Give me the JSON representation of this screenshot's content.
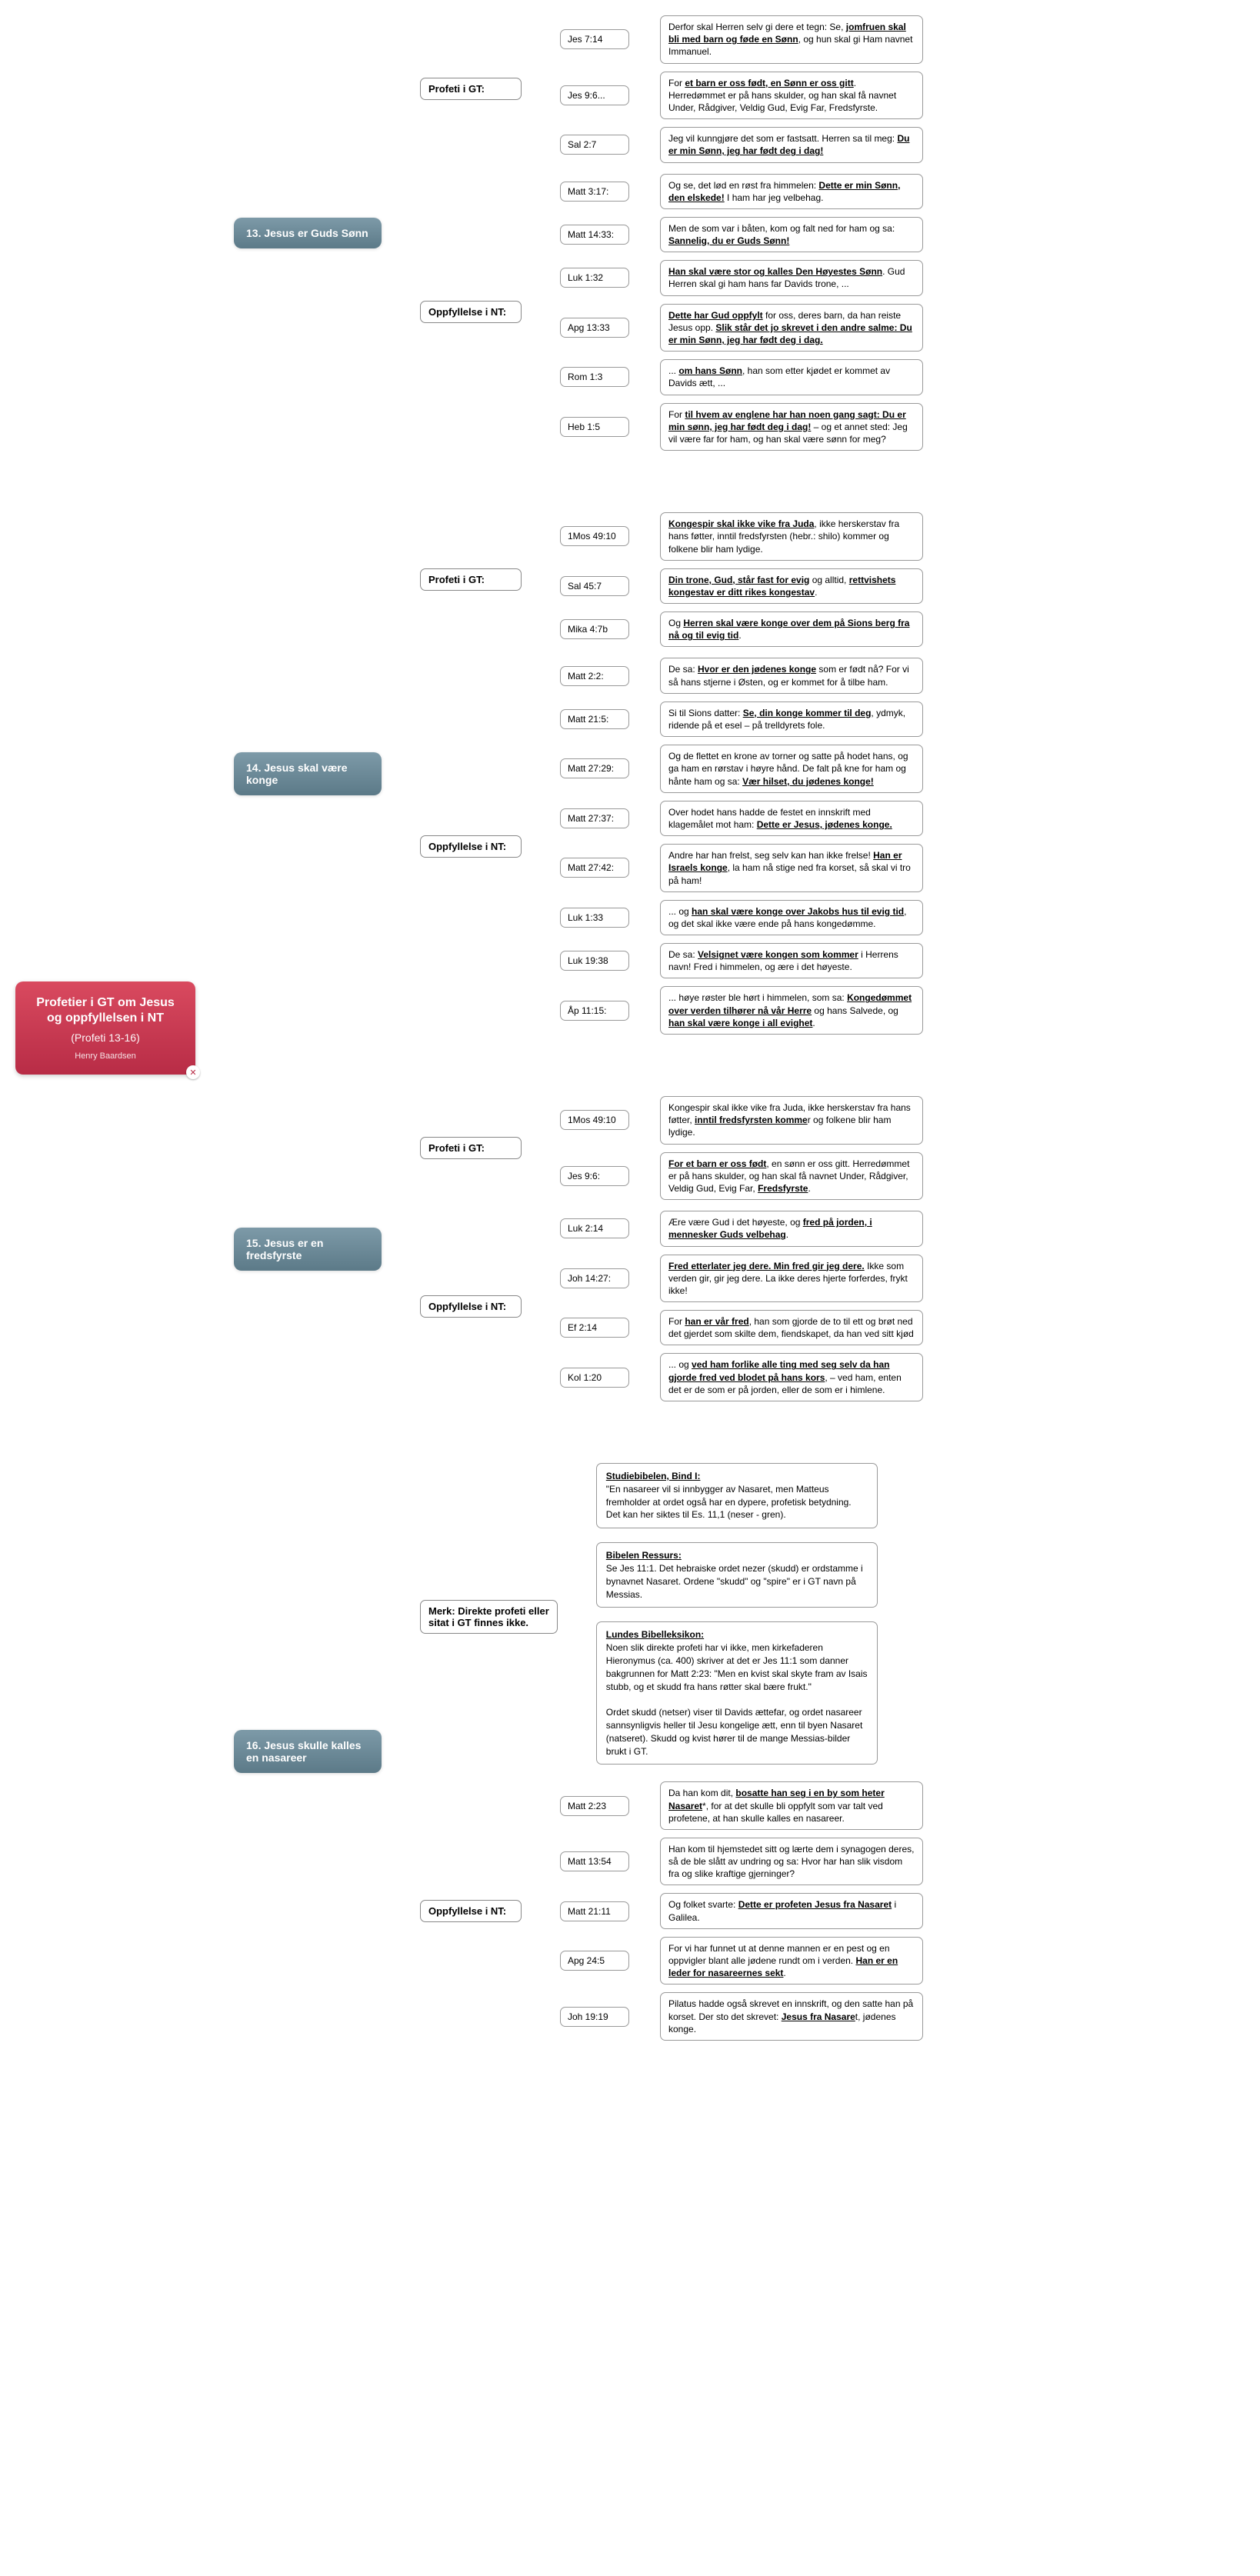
{
  "root": {
    "title": "Profetier i GT om Jesus og oppfyllelsen i NT",
    "subtitle": "(Profeti 13-16)",
    "author": "Henry Baardsen",
    "badge": "✕"
  },
  "topics": [
    {
      "label": "13. Jesus er Guds Sønn",
      "subs": [
        {
          "label": "Profeti i GT:",
          "leaves": [
            {
              "ref": "Jes 7:14",
              "html": "Derfor skal Herren selv gi dere et tegn: Se, <b><u>jomfruen skal bli med barn og føde en Sønn</u></b>, og hun skal gi Ham navnet Immanuel."
            },
            {
              "ref": "Jes 9:6...",
              "html": "For <b><u>et barn er oss født, en Sønn er oss gitt</u></b>. Herredømmet er på hans skulder, og han skal få navnet Under, Rådgiver, Veldig Gud, Evig Far, Fredsfyrste."
            },
            {
              "ref": "Sal 2:7",
              "html": "Jeg vil kunngjøre det som er fastsatt. Herren sa til meg: <b><u>Du er min Sønn, jeg har født deg i dag!</u></b>"
            }
          ]
        },
        {
          "label": "Oppfyllelse i NT:",
          "leaves": [
            {
              "ref": "Matt 3:17:",
              "html": "Og se, det lød en røst fra himmelen: <b><u>Dette er min Sønn, den elskede!</u></b> I ham har jeg velbehag."
            },
            {
              "ref": "Matt 14:33:",
              "html": "Men de som var i båten, kom og falt ned for ham og sa: <b><u>Sannelig, du er Guds Sønn!</u></b>"
            },
            {
              "ref": "Luk 1:32",
              "html": "<b><u>Han skal være stor og kalles Den Høyestes Sønn</u></b>. Gud Herren skal gi ham hans far Davids trone, ..."
            },
            {
              "ref": "Apg 13:33",
              "html": "<b><u>Dette har Gud oppfylt</u></b> for oss, deres barn, da han reiste Jesus opp. <b><u>Slik står det jo skrevet i den andre salme: Du er min Sønn, jeg har født deg i dag.</u></b>"
            },
            {
              "ref": "Rom 1:3",
              "html": "... <b><u>om hans Sønn</u></b>, han som etter kjødet er kommet av Davids ætt, ..."
            },
            {
              "ref": "Heb 1:5",
              "html": "For <b><u>til hvem av englene har han noen gang sagt: Du er min sønn, jeg har født deg i dag!</u></b> – og et annet sted: Jeg vil være far for ham, og han skal være sønn for meg?"
            }
          ]
        }
      ]
    },
    {
      "label": "14. Jesus skal være konge",
      "subs": [
        {
          "label": "Profeti i GT:",
          "leaves": [
            {
              "ref": "1Mos 49:10",
              "html": "<b><u>Kongespir skal ikke vike fra Juda</u></b>, ikke herskerstav fra hans føtter, inntil fredsfyrsten (hebr.: shilo) kommer og folkene blir ham lydige."
            },
            {
              "ref": "Sal 45:7",
              "html": "<b><u>Din trone, Gud, står fast for evig</u></b> og alltid, <b><u>rettvishets kongestav er ditt rikes kongestav</u></b>."
            },
            {
              "ref": "Mika 4:7b",
              "html": "Og <b><u>Herren skal være konge over dem på Sions berg fra nå og til evig tid</u></b>."
            }
          ]
        },
        {
          "label": "Oppfyllelse i NT:",
          "leaves": [
            {
              "ref": "Matt 2:2:",
              "html": "De sa: <b><u>Hvor er den jødenes konge</u></b> som er født nå? For vi så hans stjerne i Østen, og er kommet for å tilbe ham."
            },
            {
              "ref": "Matt 21:5:",
              "html": "Si til Sions datter: <b><u>Se, din konge kommer til deg</u></b>, ydmyk, ridende på et esel – på trelldyrets fole."
            },
            {
              "ref": "Matt 27:29:",
              "html": "Og de flettet en krone av torner og satte på hodet hans, og ga ham en rørstav i høyre hånd. De falt på kne for ham og hånte ham og sa: <b><u>Vær hilset, du jødenes konge!</u></b>"
            },
            {
              "ref": "Matt 27:37:",
              "html": "Over hodet hans hadde de festet en innskrift med klagemålet mot ham: <b><u>Dette er Jesus, jødenes konge.</u></b>"
            },
            {
              "ref": "Matt 27:42:",
              "html": "Andre har han frelst, seg selv kan han ikke frelse! <b><u>Han er Israels konge</u></b>, la ham nå stige ned fra korset, så skal vi tro på ham!"
            },
            {
              "ref": "Luk 1:33",
              "html": "... og <b><u>han skal være konge over Jakobs hus til evig tid</u></b>, og det skal ikke være ende på hans kongedømme."
            },
            {
              "ref": "Luk 19:38",
              "html": "De sa: <b><u>Velsignet være kongen som kommer</u></b> i Herrens navn! Fred i himmelen, og ære i det høyeste."
            },
            {
              "ref": "Åp 11:15:",
              "html": "... høye røster ble hørt i himmelen, som sa: <b><u>Kongedømmet over verden tilhører nå vår Herre</u></b> og hans Salvede, og <b><u>han skal være konge i all evighet</u></b>."
            }
          ]
        }
      ]
    },
    {
      "label": "15. Jesus er en fredsfyrste",
      "subs": [
        {
          "label": "Profeti i GT:",
          "leaves": [
            {
              "ref": "1Mos 49:10",
              "html": "Kongespir skal ikke vike fra Juda, ikke herskerstav fra hans føtter, <b><u>inntil fredsfyrsten komme</u></b>r og folkene blir ham lydige."
            },
            {
              "ref": "Jes 9:6:",
              "html": "<b><u>For et barn er oss født</u></b>, en sønn er oss gitt. Herredømmet er på hans skulder, og han skal få navnet Under, Rådgiver, Veldig Gud, Evig Far, <b><u>Fredsfyrste</u></b>."
            }
          ]
        },
        {
          "label": "Oppfyllelse i NT:",
          "leaves": [
            {
              "ref": "Luk 2:14",
              "html": "Ære være Gud i det høyeste, og <b><u>fred på jorden, i mennesker Guds velbehag</u></b>."
            },
            {
              "ref": "Joh 14:27:",
              "html": "<b><u>Fred etterlater jeg dere. Min fred gir jeg dere.</u></b> Ikke som verden gir, gir jeg dere. La ikke deres hjerte forferdes, frykt ikke!"
            },
            {
              "ref": "Ef 2:14",
              "html": "For <b><u>han er vår fred</u></b>, han som gjorde de to til ett og brøt ned det gjerdet som skilte dem, fiendskapet, da han ved sitt kjød"
            },
            {
              "ref": "Kol 1:20",
              "html": "... og <b><u>ved ham forlike alle ting med seg selv da han gjorde fred ved blodet på hans kors</u></b>, – ved ham, enten det er de som er på jorden, eller de som er i himlene."
            }
          ]
        }
      ]
    },
    {
      "label": "16. Jesus skulle kalles en nasareer",
      "subs": [
        {
          "label": "Merk: Direkte profeti eller\nsitat i GT finnes ikke.",
          "notes": [
            {
              "h": "Studiebibelen, Bind I:",
              "body": "\"En nasareer vil si innbygger av Nasaret, men Matteus fremholder at ordet også har en dypere, profetisk betydning. Det kan her siktes til Es. 11,1 (neser - gren)."
            },
            {
              "h": "Bibelen Ressurs:",
              "body": "Se Jes 11:1. Det hebraiske ordet nezer (skudd) er ordstamme i bynavnet Nasaret. Ordene \"skudd\" og \"spire\" er i GT navn på Messias."
            },
            {
              "h": "Lundes Bibelleksikon:",
              "body": "Noen slik direkte profeti har vi ikke, men kirkefaderen Hieronymus (ca. 400) skriver at det er Jes 11:1 som danner bakgrunnen for Matt 2:23: \"Men en kvist skal skyte fram av Isais stubb, og et skudd fra hans røtter skal bære frukt.\"\n\nOrdet skudd (netser) viser til Davids ættefar, og ordet nasareer sannsynligvis heller til Jesu kongelige ætt, enn til byen Nasaret (natseret). Skudd og kvist hører til de mange Messias-bilder brukt i GT."
            }
          ]
        },
        {
          "label": "Oppfyllelse i NT:",
          "leaves": [
            {
              "ref": "Matt 2:23",
              "html": "Da han kom dit, <b><u>bosatte han seg i en by som heter Nasaret</u></b>*, for at det skulle bli oppfylt som var talt ved profetene, at han skulle kalles en nasareer."
            },
            {
              "ref": "Matt 13:54",
              "html": "Han kom til hjemstedet sitt og lærte dem i synagogen deres, så de ble slått av undring og sa: Hvor har han slik visdom fra og slike kraftige gjerninger?"
            },
            {
              "ref": "Matt 21:11",
              "html": "Og folket svarte: <b><u>Dette er profeten Jesus fra Nasaret</u></b> i Galilea."
            },
            {
              "ref": "Apg 24:5",
              "html": "For vi har funnet ut at denne mannen er en pest og en oppvigler blant alle jødene rundt om i verden. <b><u>Han er en leder for nasareernes sekt</u></b>."
            },
            {
              "ref": "Joh 19:19",
              "html": "Pilatus hadde også skrevet en innskrift, og den satte han på korset. Der sto det skrevet: <b><u>Jesus fra Nasare</u></b>t, jødenes konge."
            }
          ]
        }
      ]
    }
  ]
}
